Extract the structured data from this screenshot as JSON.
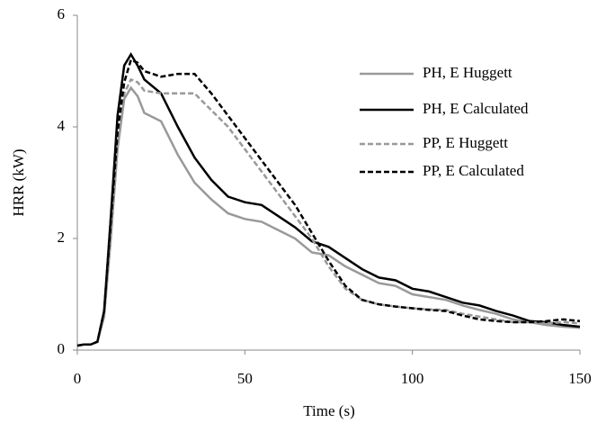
{
  "chart_data": {
    "type": "line",
    "xlabel": "Time (s)",
    "ylabel": "HRR (kW)",
    "x": [
      0,
      2,
      4,
      6,
      8,
      10,
      12,
      14,
      16,
      18,
      20,
      25,
      30,
      35,
      40,
      45,
      50,
      55,
      60,
      65,
      70,
      75,
      80,
      85,
      90,
      95,
      100,
      105,
      110,
      115,
      120,
      125,
      130,
      135,
      140,
      145,
      150
    ],
    "xlim": [
      0,
      150
    ],
    "xticks": [
      0,
      50,
      100,
      150
    ],
    "ylim": [
      0,
      6
    ],
    "yticks": [
      0,
      2,
      4,
      6
    ],
    "legend": "upper right",
    "series": [
      {
        "name": "PH, E Huggett",
        "color": "#999999",
        "style": "solid",
        "values": [
          0.08,
          0.1,
          0.1,
          0.15,
          0.6,
          2.0,
          3.6,
          4.5,
          4.7,
          4.55,
          4.25,
          4.1,
          3.5,
          3.0,
          2.7,
          2.45,
          2.35,
          2.3,
          2.15,
          2.0,
          1.75,
          1.7,
          1.5,
          1.35,
          1.2,
          1.15,
          1.0,
          0.95,
          0.9,
          0.8,
          0.72,
          0.65,
          0.55,
          0.5,
          0.45,
          0.42,
          0.4
        ]
      },
      {
        "name": "PH, E Calculated",
        "color": "#000000",
        "style": "solid",
        "values": [
          0.08,
          0.1,
          0.1,
          0.15,
          0.7,
          2.4,
          4.2,
          5.1,
          5.3,
          5.1,
          4.85,
          4.6,
          4.0,
          3.45,
          3.05,
          2.75,
          2.65,
          2.6,
          2.4,
          2.2,
          1.95,
          1.85,
          1.65,
          1.45,
          1.3,
          1.25,
          1.1,
          1.05,
          0.95,
          0.85,
          0.8,
          0.7,
          0.62,
          0.52,
          0.5,
          0.45,
          0.42
        ]
      },
      {
        "name": "PP, E Huggett",
        "color": "#999999",
        "style": "dashed",
        "values": [
          0.08,
          0.1,
          0.1,
          0.15,
          0.7,
          2.3,
          3.9,
          4.6,
          4.85,
          4.8,
          4.65,
          4.6,
          4.6,
          4.6,
          4.3,
          4.0,
          3.6,
          3.2,
          2.8,
          2.4,
          2.0,
          1.5,
          1.1,
          0.9,
          0.82,
          0.78,
          0.75,
          0.73,
          0.72,
          0.65,
          0.6,
          0.55,
          0.5,
          0.5,
          0.48,
          0.5,
          0.48
        ]
      },
      {
        "name": "PP, E Calculated",
        "color": "#000000",
        "style": "dashed",
        "values": [
          0.08,
          0.1,
          0.1,
          0.15,
          0.7,
          2.3,
          3.9,
          4.8,
          5.2,
          5.15,
          5.0,
          4.9,
          4.95,
          4.95,
          4.6,
          4.2,
          3.8,
          3.4,
          3.0,
          2.6,
          2.1,
          1.6,
          1.15,
          0.9,
          0.82,
          0.78,
          0.75,
          0.72,
          0.7,
          0.62,
          0.55,
          0.52,
          0.5,
          0.5,
          0.52,
          0.55,
          0.52
        ]
      }
    ]
  }
}
